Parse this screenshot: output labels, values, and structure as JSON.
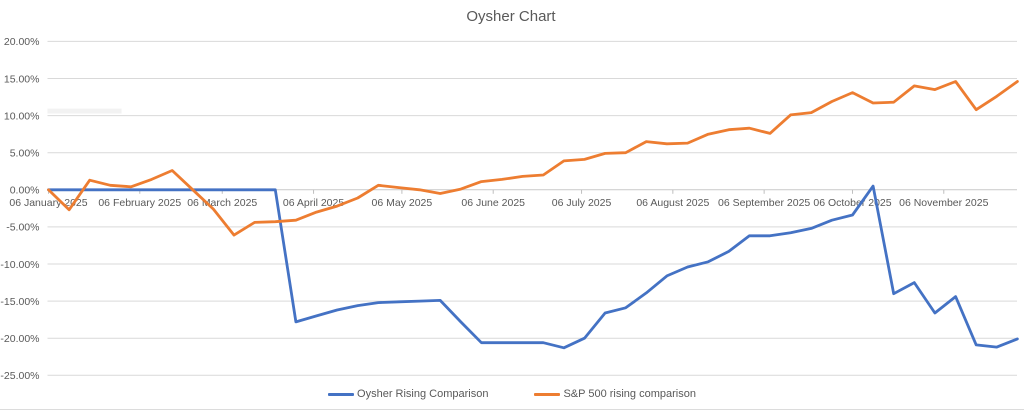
{
  "window": {
    "background": "#ffffff",
    "bottom_border_color": "#dcdcdc"
  },
  "chart_data": {
    "type": "line",
    "title": "Oysher Chart",
    "title_color": "#595959",
    "axis_text_color": "#595959",
    "gridline_color": "#D9D9D9",
    "zero_axis_color": "#C9C9C9",
    "tick_color": "#BFBFBF",
    "grid": true,
    "legend_position": "bottom",
    "ylim": [
      -25,
      20
    ],
    "ytick_step": 5,
    "yticklabels": [
      "20.00%",
      "15.00%",
      "10.00%",
      "5.00%",
      "0.00%",
      "-5.00%",
      "-10.00%",
      "-15.00%",
      "-20.00%",
      "-25.00%"
    ],
    "xticks": [
      {
        "date": "2025-01-06",
        "label": "06 January 2025"
      },
      {
        "date": "2025-02-06",
        "label": "06 February 2025"
      },
      {
        "date": "2025-03-06",
        "label": "06 March 2025"
      },
      {
        "date": "2025-04-06",
        "label": "06 April 2025"
      },
      {
        "date": "2025-05-06",
        "label": "06 May 2025"
      },
      {
        "date": "2025-06-06",
        "label": "06 June 2025"
      },
      {
        "date": "2025-07-06",
        "label": "06 July 2025"
      },
      {
        "date": "2025-08-06",
        "label": "06 August 2025"
      },
      {
        "date": "2025-09-06",
        "label": "06 September 2025"
      },
      {
        "date": "2025-10-06",
        "label": "06 October 2025"
      },
      {
        "date": "2025-11-06",
        "label": "06 November 2025"
      }
    ],
    "x_dates": [
      "2025-01-06",
      "2025-01-13",
      "2025-01-20",
      "2025-01-27",
      "2025-02-03",
      "2025-02-10",
      "2025-02-17",
      "2025-02-24",
      "2025-03-03",
      "2025-03-10",
      "2025-03-17",
      "2025-03-24",
      "2025-03-31",
      "2025-04-07",
      "2025-04-14",
      "2025-04-21",
      "2025-04-28",
      "2025-05-05",
      "2025-05-12",
      "2025-05-19",
      "2025-05-26",
      "2025-06-02",
      "2025-06-09",
      "2025-06-16",
      "2025-06-23",
      "2025-06-30",
      "2025-07-07",
      "2025-07-14",
      "2025-07-21",
      "2025-07-28",
      "2025-08-04",
      "2025-08-11",
      "2025-08-18",
      "2025-08-25",
      "2025-09-01",
      "2025-09-08",
      "2025-09-15",
      "2025-09-22",
      "2025-09-29",
      "2025-10-06",
      "2025-10-13",
      "2025-10-20",
      "2025-10-27",
      "2025-11-03",
      "2025-11-10",
      "2025-11-17",
      "2025-11-24",
      "2025-12-01"
    ],
    "series": [
      {
        "name": "Oysher Rising Comparison",
        "color": "#4472C4",
        "values": [
          0.0,
          0.0,
          0.0,
          0.0,
          0.0,
          0.0,
          0.0,
          0.0,
          0.0,
          0.0,
          0.0,
          0.0,
          -17.8,
          -17.0,
          -16.2,
          -15.6,
          -15.2,
          -15.1,
          -15.0,
          -14.9,
          -17.8,
          -20.6,
          -20.6,
          -20.6,
          -20.6,
          -21.3,
          -20.0,
          -16.6,
          -15.9,
          -13.9,
          -11.6,
          -10.4,
          -9.7,
          -8.3,
          -6.2,
          -6.2,
          -5.8,
          -5.2,
          -4.1,
          -3.4,
          0.5,
          -14.0,
          -12.5,
          -16.6,
          -14.4,
          -20.9,
          -21.2,
          -20.1
        ]
      },
      {
        "name": "S&P 500 rising comparison",
        "color": "#ED7D31",
        "values": [
          0.0,
          -2.7,
          1.3,
          0.6,
          0.4,
          1.4,
          2.6,
          0.0,
          -2.6,
          -6.1,
          -4.4,
          -4.3,
          -4.1,
          -3.0,
          -2.2,
          -1.1,
          0.6,
          0.3,
          0.0,
          -0.5,
          0.1,
          1.1,
          1.4,
          1.8,
          2.0,
          3.9,
          4.1,
          4.9,
          5.0,
          6.5,
          6.2,
          6.3,
          7.5,
          8.1,
          8.3,
          7.6,
          10.1,
          10.4,
          11.9,
          13.1,
          11.7,
          11.8,
          14.0,
          13.5,
          14.6,
          10.8,
          12.6,
          14.6
        ]
      }
    ]
  }
}
